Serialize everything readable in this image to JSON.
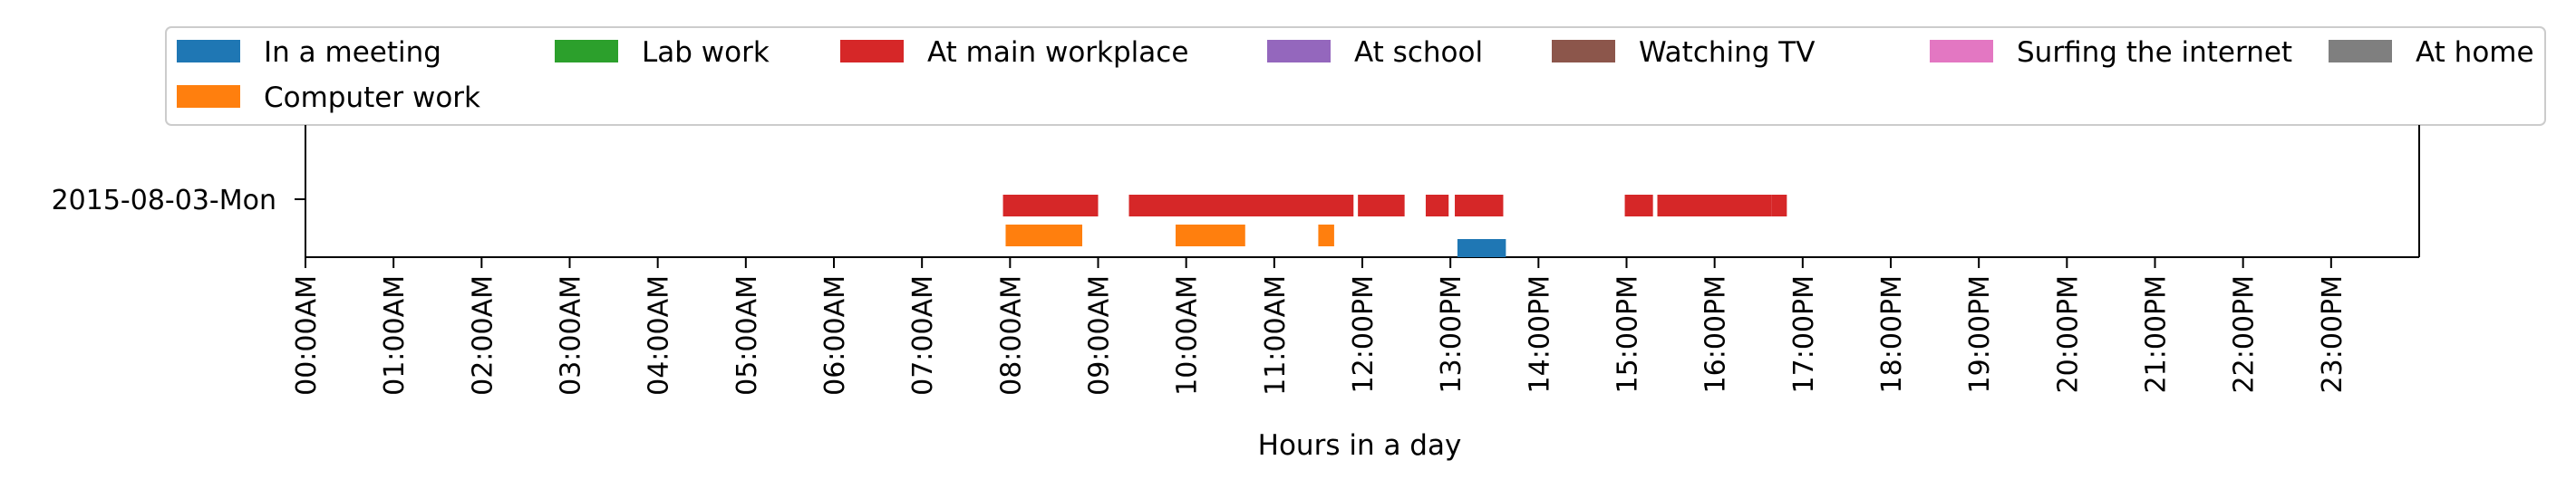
{
  "chart_data": {
    "type": "timeline",
    "xlabel": "Hours in a day",
    "ylabel": "",
    "xlim": [
      0,
      24
    ],
    "y_categories": [
      "2015-08-03-Mon"
    ],
    "x_tick_labels": [
      "00:00AM",
      "01:00AM",
      "02:00AM",
      "03:00AM",
      "04:00AM",
      "05:00AM",
      "06:00AM",
      "07:00AM",
      "08:00AM",
      "09:00AM",
      "10:00AM",
      "11:00AM",
      "12:00PM",
      "13:00PM",
      "14:00PM",
      "15:00PM",
      "16:00PM",
      "17:00PM",
      "18:00PM",
      "19:00PM",
      "20:00PM",
      "21:00PM",
      "22:00PM",
      "23:00PM"
    ],
    "legend": {
      "placement": "top",
      "entries": [
        {
          "name": "In a meeting",
          "color": "#1f77b4"
        },
        {
          "name": "Lab work",
          "color": "#2ca02c"
        },
        {
          "name": "At main workplace",
          "color": "#d62728"
        },
        {
          "name": "At school",
          "color": "#9467bd"
        },
        {
          "name": "Watching TV",
          "color": "#8c564b"
        },
        {
          "name": "Surfing the internet",
          "color": "#e377c2"
        },
        {
          "name": "At home",
          "color": "#7f7f7f"
        },
        {
          "name": "Computer work",
          "color": "#ff7f0e"
        }
      ]
    },
    "series": [
      {
        "name": "In a meeting",
        "color": "#1f77b4",
        "intervals": [
          [
            13.08,
            13.63
          ]
        ]
      },
      {
        "name": "Computer work",
        "color": "#ff7f0e",
        "intervals": [
          [
            7.95,
            8.82
          ],
          [
            9.88,
            10.67
          ],
          [
            11.5,
            11.68
          ]
        ]
      },
      {
        "name": "At main workplace",
        "color": "#d62728",
        "intervals": [
          [
            7.92,
            9.0
          ],
          [
            9.35,
            11.9
          ],
          [
            11.95,
            12.48
          ],
          [
            12.72,
            12.98
          ],
          [
            13.05,
            13.6
          ],
          [
            14.98,
            15.3
          ],
          [
            15.35,
            16.65
          ],
          [
            16.65,
            16.82
          ]
        ]
      }
    ]
  }
}
